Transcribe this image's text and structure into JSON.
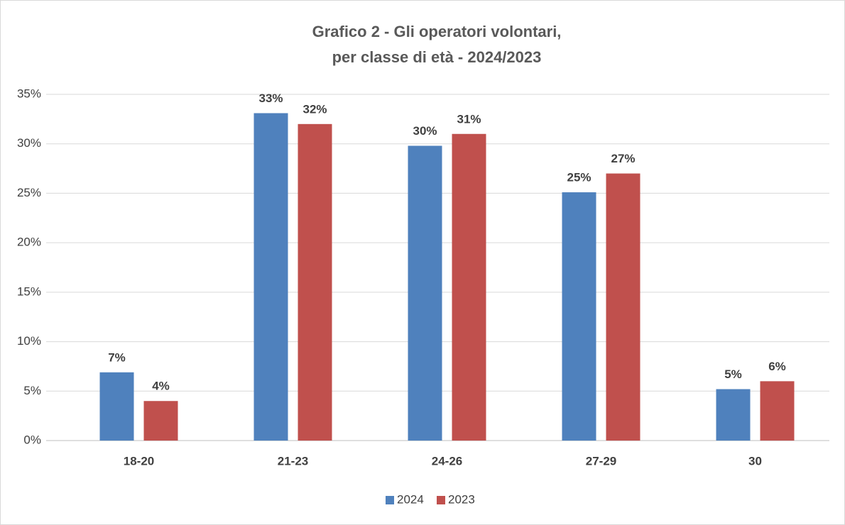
{
  "chart_data": {
    "type": "bar",
    "title": [
      "Grafico 2 - Gli operatori volontari,",
      "per classe di età - 2024/2023"
    ],
    "categories": [
      "18-20",
      "21-23",
      "24-26",
      "27-29",
      "30"
    ],
    "series": [
      {
        "name": "2024",
        "color": "#4f81bd",
        "values": [
          6.9,
          33.1,
          29.8,
          25.1,
          5.2
        ],
        "value_labels": [
          "7%",
          "33%",
          "30%",
          "25%",
          "5%"
        ]
      },
      {
        "name": "2023",
        "color": "#c0504d",
        "values": [
          4,
          32,
          31,
          27,
          6
        ],
        "value_labels": [
          "4%",
          "32%",
          "31%",
          "27%",
          "6%"
        ]
      }
    ],
    "ylim": [
      0,
      35
    ],
    "yticks": [
      {
        "value": 0,
        "label": "0%"
      },
      {
        "value": 5,
        "label": "5%"
      },
      {
        "value": 10,
        "label": "10%"
      },
      {
        "value": 15,
        "label": "15%"
      },
      {
        "value": 20,
        "label": "20%"
      },
      {
        "value": 25,
        "label": "25%"
      },
      {
        "value": 30,
        "label": "30%"
      },
      {
        "value": 35,
        "label": "35%"
      }
    ],
    "grid": true,
    "legend": "bottom"
  }
}
